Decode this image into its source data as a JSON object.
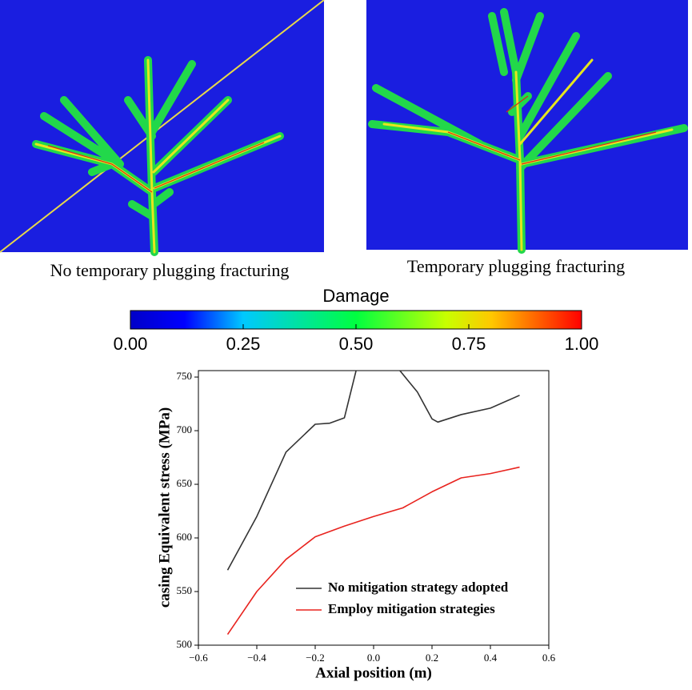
{
  "panels": [
    {
      "caption": "No temporary plugging fracturing"
    },
    {
      "caption": "Temporary plugging fracturing"
    }
  ],
  "colorbar": {
    "title": "Damage",
    "range": [
      0,
      1
    ],
    "ticks": [
      {
        "value": 0,
        "label": "0.00"
      },
      {
        "value": 0.25,
        "label": "0.25"
      },
      {
        "value": 0.5,
        "label": "0.50"
      },
      {
        "value": 0.75,
        "label": "0.75"
      },
      {
        "value": 1,
        "label": "1.00"
      }
    ]
  },
  "chart_data": {
    "type": "line",
    "xlabel": "Axial position (m)",
    "ylabel": "casing Equivalent stress (MPa)",
    "xlim": [
      -0.6,
      0.6
    ],
    "ylim": [
      500,
      756
    ],
    "xticks": [
      {
        "value": -0.6,
        "label": "−0.6"
      },
      {
        "value": -0.4,
        "label": "−0.4"
      },
      {
        "value": -0.2,
        "label": "−0.2"
      },
      {
        "value": 0,
        "label": "0.0"
      },
      0.2,
      0.4,
      0.6
    ],
    "yticks": [
      500,
      550,
      600,
      650,
      700,
      750
    ],
    "legend": "lower right",
    "series": [
      {
        "name": "No mitigation strategy adopted",
        "color": "#333333",
        "x": [
          -0.5,
          -0.4,
          -0.3,
          -0.2,
          -0.15,
          -0.1,
          -0.06,
          0,
          0.09,
          0.15,
          0.2,
          0.22,
          0.3,
          0.4,
          0.5
        ],
        "values": [
          570,
          620,
          680,
          706,
          707,
          712,
          756,
          null,
          756,
          736,
          711,
          708,
          715,
          721,
          733
        ]
      },
      {
        "name": "Employ mitigation strategies",
        "color": "#e8231e",
        "x": [
          -0.5,
          -0.4,
          -0.3,
          -0.2,
          -0.1,
          0,
          0.1,
          0.2,
          0.3,
          0.4,
          0.5
        ],
        "values": [
          510,
          550,
          580,
          601,
          611,
          620,
          628,
          643,
          656,
          660,
          666
        ]
      }
    ]
  }
}
